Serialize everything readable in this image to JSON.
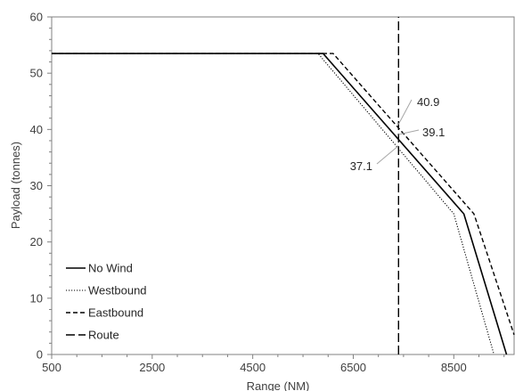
{
  "chart_data": {
    "type": "line",
    "title": "",
    "xlabel": "Range (NM)",
    "ylabel": "Payload (tonnes)",
    "xlim": [
      500,
      9700
    ],
    "ylim": [
      0,
      60
    ],
    "x_ticks": [
      500,
      2500,
      4500,
      6500,
      8500
    ],
    "y_ticks": [
      0,
      10,
      20,
      30,
      40,
      50,
      60
    ],
    "grid": false,
    "legend_position": "bottom-left",
    "series": [
      {
        "name": "No Wind",
        "style": "solid",
        "color": "#000000",
        "points": [
          [
            500,
            53.5
          ],
          [
            5900,
            53.5
          ],
          [
            8700,
            25
          ],
          [
            9550,
            0
          ]
        ]
      },
      {
        "name": "Westbound",
        "style": "dotted",
        "color": "#000000",
        "points": [
          [
            500,
            53.5
          ],
          [
            5800,
            53.5
          ],
          [
            8500,
            25
          ],
          [
            9300,
            0
          ]
        ]
      },
      {
        "name": "Eastbound",
        "style": "dashed",
        "color": "#000000",
        "points": [
          [
            500,
            53.5
          ],
          [
            6100,
            53.5
          ],
          [
            8900,
            25
          ],
          [
            9700,
            3.5
          ]
        ]
      },
      {
        "name": "Route",
        "style": "longdash",
        "color": "#000000",
        "points": [
          [
            7400,
            0
          ],
          [
            7400,
            60
          ]
        ]
      }
    ],
    "annotations": [
      {
        "label": "40.9",
        "x": 7400,
        "y": 40.9
      },
      {
        "label": "39.1",
        "x": 7400,
        "y": 39.1
      },
      {
        "label": "37.1",
        "x": 7400,
        "y": 37.1
      }
    ]
  }
}
